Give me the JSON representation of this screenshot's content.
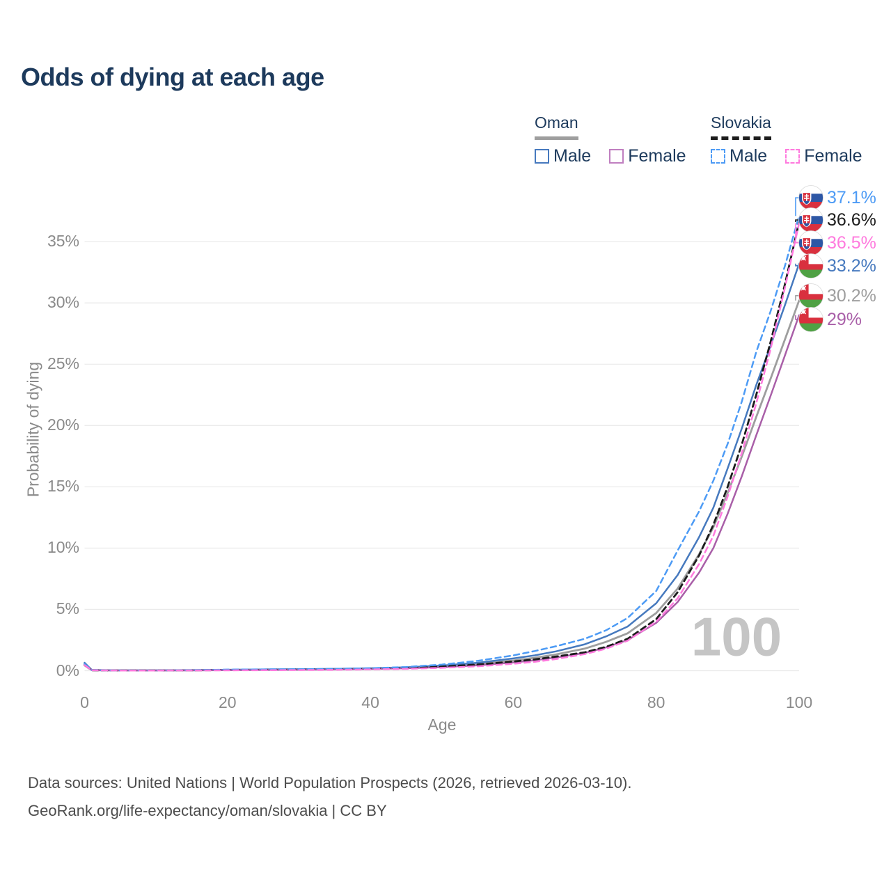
{
  "title": "Odds of dying at each age",
  "watermark": "100",
  "colors": {
    "title_text": "#1d3a5c",
    "axis_text": "#8a8a8a",
    "grid": "#ebebeb",
    "watermark": "#c5c5c5",
    "source_text": "#4c4c4c",
    "oman_male": "#4679be",
    "oman_total": "#9e9e9e",
    "oman_female": "#a95fa8",
    "slovakia_male": "#4d9bf5",
    "slovakia_total": "#1c1c1c",
    "slovakia_female": "#ff7ade"
  },
  "legend": {
    "groups": [
      {
        "country": "Oman",
        "style": "solid",
        "line_color": "#9e9e9e",
        "entries": [
          {
            "label": "Male",
            "color": "#4679be"
          },
          {
            "label": "Female",
            "color": "#c07fc0"
          }
        ]
      },
      {
        "country": "Slovakia",
        "style": "dashed",
        "line_color": "#1c1c1c",
        "entries": [
          {
            "label": "Male",
            "color": "#4d9bf5"
          },
          {
            "label": "Female",
            "color": "#ff7ade"
          }
        ]
      }
    ]
  },
  "source": {
    "line1": "Data sources: United Nations | World Population Prospects (2026, retrieved 2026-03-10).",
    "line2": "GeoRank.org/life-expectancy/oman/slovakia | CC BY"
  },
  "chart_data": {
    "type": "line",
    "title": "Odds of dying at each age",
    "xlabel": "Age",
    "ylabel": "Probability of dying",
    "xlim": [
      0,
      100
    ],
    "ylim_percent": [
      0,
      39
    ],
    "xticks": [
      0,
      20,
      40,
      60,
      80,
      100
    ],
    "ytick_percents": [
      0,
      5,
      10,
      15,
      20,
      25,
      30,
      35
    ],
    "grid": "horizontal-only",
    "legend_position": "top-right",
    "watermark_age_label": "100",
    "ages": [
      0,
      1,
      3,
      5,
      10,
      15,
      20,
      25,
      30,
      35,
      40,
      45,
      50,
      55,
      60,
      63,
      66,
      70,
      73,
      76,
      80,
      83,
      86,
      88,
      90,
      92,
      94,
      96,
      98,
      100
    ],
    "series": [
      {
        "name": "Slovakia Male",
        "country": "Slovakia",
        "sex": "Male",
        "color": "#4d9bf5",
        "dash": "dashed",
        "flag": "slovakia",
        "end_label": "37.1%",
        "values_percent": [
          0.55,
          0.05,
          0.03,
          0.02,
          0.02,
          0.04,
          0.09,
          0.11,
          0.12,
          0.15,
          0.2,
          0.3,
          0.5,
          0.8,
          1.25,
          1.6,
          2.0,
          2.6,
          3.3,
          4.3,
          6.5,
          9.8,
          13.0,
          15.5,
          18.5,
          22.0,
          26.0,
          29.3,
          33.0,
          37.1
        ]
      },
      {
        "name": "Slovakia (both sexes)",
        "country": "Slovakia",
        "sex": "Total",
        "color": "#1c1c1c",
        "dash": "dashed",
        "flag": "slovakia",
        "end_label": "36.6%",
        "values_percent": [
          0.45,
          0.04,
          0.025,
          0.02,
          0.02,
          0.03,
          0.06,
          0.08,
          0.09,
          0.11,
          0.14,
          0.21,
          0.33,
          0.5,
          0.75,
          0.92,
          1.15,
          1.5,
          1.95,
          2.6,
          4.2,
          6.4,
          9.4,
          11.9,
          15.0,
          18.5,
          22.5,
          26.8,
          31.5,
          36.6
        ]
      },
      {
        "name": "Slovakia Female",
        "country": "Slovakia",
        "sex": "Female",
        "color": "#ff7ade",
        "dash": "dashed",
        "flag": "slovakia",
        "end_label": "36.5%",
        "values_percent": [
          0.45,
          0.035,
          0.02,
          0.015,
          0.015,
          0.02,
          0.03,
          0.04,
          0.05,
          0.07,
          0.1,
          0.15,
          0.23,
          0.36,
          0.56,
          0.72,
          0.95,
          1.35,
          1.8,
          2.45,
          4.0,
          5.9,
          8.7,
          11.0,
          14.2,
          17.8,
          21.8,
          26.2,
          31.2,
          36.5
        ]
      },
      {
        "name": "Oman Male",
        "country": "Oman",
        "sex": "Male",
        "color": "#4679be",
        "dash": "solid",
        "flag": "oman",
        "end_label": "33.2%",
        "values_percent": [
          0.65,
          0.06,
          0.04,
          0.03,
          0.03,
          0.05,
          0.08,
          0.1,
          0.12,
          0.15,
          0.2,
          0.28,
          0.42,
          0.65,
          1.0,
          1.25,
          1.58,
          2.15,
          2.8,
          3.6,
          5.5,
          7.8,
          10.9,
          13.3,
          16.5,
          19.8,
          23.3,
          26.5,
          29.8,
          33.2
        ]
      },
      {
        "name": "Oman (both sexes)",
        "country": "Oman",
        "sex": "Total",
        "color": "#9e9e9e",
        "dash": "solid",
        "flag": "oman",
        "end_label": "30.2%",
        "values_percent": [
          0.55,
          0.05,
          0.035,
          0.025,
          0.025,
          0.04,
          0.06,
          0.08,
          0.1,
          0.13,
          0.17,
          0.24,
          0.35,
          0.54,
          0.83,
          1.05,
          1.33,
          1.8,
          2.35,
          3.05,
          4.7,
          6.7,
          9.5,
          11.7,
          14.5,
          17.5,
          20.7,
          23.8,
          27.0,
          30.2
        ]
      },
      {
        "name": "Oman Female",
        "country": "Oman",
        "sex": "Female",
        "color": "#a95fa8",
        "dash": "solid",
        "flag": "oman",
        "end_label": "29%",
        "values_percent": [
          0.5,
          0.045,
          0.03,
          0.02,
          0.02,
          0.03,
          0.04,
          0.06,
          0.08,
          0.1,
          0.14,
          0.2,
          0.29,
          0.44,
          0.67,
          0.85,
          1.08,
          1.45,
          1.9,
          2.5,
          3.9,
          5.6,
          8.0,
          10.0,
          12.8,
          15.9,
          19.2,
          22.4,
          25.7,
          29.0
        ]
      }
    ]
  }
}
